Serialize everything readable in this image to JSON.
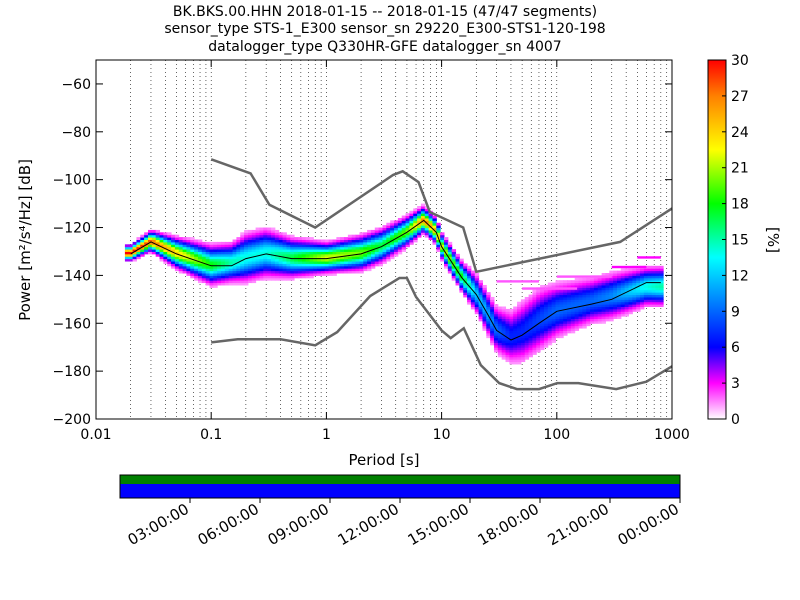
{
  "chart_data": {
    "type": "heatmap",
    "title_lines": [
      "BK.BKS.00.HHN   2018-01-15 -- 2018-01-15  (47/47 segments)",
      "sensor_type STS-1_E300 sensor_sn 29220_E300-STS1-120-198",
      "datalogger_type Q330HR-GFE datalogger_sn 4007"
    ],
    "xlabel": "Period [s]",
    "ylabel": "Power [m²/s⁴/Hz] [dB]",
    "x_scale": "log",
    "xlim": [
      0.01,
      1000
    ],
    "ylim": [
      -200,
      -50
    ],
    "x_ticks": [
      {
        "value": 0.01,
        "label": "0.01"
      },
      {
        "value": 0.1,
        "label": "0.1"
      },
      {
        "value": 1,
        "label": "1"
      },
      {
        "value": 10,
        "label": "10"
      },
      {
        "value": 100,
        "label": "100"
      },
      {
        "value": 1000,
        "label": "1000"
      }
    ],
    "y_ticks": [
      {
        "value": -60,
        "label": "−60"
      },
      {
        "value": -80,
        "label": "−80"
      },
      {
        "value": -100,
        "label": "−100"
      },
      {
        "value": -120,
        "label": "−120"
      },
      {
        "value": -140,
        "label": "−140"
      },
      {
        "value": -160,
        "label": "−160"
      },
      {
        "value": -180,
        "label": "−180"
      },
      {
        "value": -200,
        "label": "−200"
      }
    ],
    "grid": "dotted vertical at log decades",
    "colorbar": {
      "label": "[%]",
      "min": 0,
      "max": 30,
      "ticks": [
        "0",
        "3",
        "6",
        "9",
        "12",
        "15",
        "18",
        "21",
        "24",
        "27",
        "30"
      ],
      "colormap": "pqlx"
    },
    "model_curves": [
      {
        "name": "NHNM",
        "color": "#666666",
        "points": [
          [
            0.1,
            -91.5
          ],
          [
            0.22,
            -97.4
          ],
          [
            0.32,
            -110.5
          ],
          [
            0.8,
            -120
          ],
          [
            3.8,
            -98
          ],
          [
            4.6,
            -96.5
          ],
          [
            6.3,
            -101
          ],
          [
            7.9,
            -113.5
          ],
          [
            15.4,
            -120
          ],
          [
            20,
            -138.5
          ],
          [
            354.8,
            -126
          ],
          [
            1000,
            -112
          ]
        ]
      },
      {
        "name": "NLNM",
        "color": "#666666",
        "points": [
          [
            0.1,
            -168
          ],
          [
            0.17,
            -166.7
          ],
          [
            0.4,
            -166.7
          ],
          [
            0.8,
            -169.2
          ],
          [
            1.24,
            -163.7
          ],
          [
            2.4,
            -148.6
          ],
          [
            4.3,
            -141.1
          ],
          [
            5,
            -141.1
          ],
          [
            6,
            -149
          ],
          [
            10,
            -163
          ],
          [
            12,
            -166.2
          ],
          [
            15.6,
            -162.1
          ],
          [
            21.9,
            -177.5
          ],
          [
            31.6,
            -185
          ],
          [
            45,
            -187.5
          ],
          [
            70,
            -187.5
          ],
          [
            101,
            -185
          ],
          [
            154,
            -185
          ],
          [
            328,
            -187.5
          ],
          [
            600,
            -184.4
          ],
          [
            1000,
            -178
          ]
        ]
      }
    ],
    "ppsd_mode": {
      "name": "mode",
      "color": "#000000",
      "points": [
        [
          0.02,
          -131
        ],
        [
          0.03,
          -126
        ],
        [
          0.05,
          -131
        ],
        [
          0.1,
          -136
        ],
        [
          0.15,
          -136
        ],
        [
          0.2,
          -133
        ],
        [
          0.3,
          -131
        ],
        [
          0.5,
          -133
        ],
        [
          1,
          -133
        ],
        [
          2,
          -131
        ],
        [
          3,
          -128
        ],
        [
          5,
          -122
        ],
        [
          7,
          -117
        ],
        [
          9,
          -122
        ],
        [
          10,
          -128
        ],
        [
          15,
          -141
        ],
        [
          20,
          -148
        ],
        [
          25,
          -156
        ],
        [
          30,
          -163
        ],
        [
          40,
          -167
        ],
        [
          50,
          -165
        ],
        [
          70,
          -160
        ],
        [
          100,
          -155
        ],
        [
          200,
          -152
        ],
        [
          300,
          -150
        ],
        [
          600,
          -143
        ],
        [
          800,
          -143
        ]
      ]
    },
    "ppsd_density": [
      {
        "x": 0.02,
        "center": -131,
        "spread": 1.5,
        "peak": 30
      },
      {
        "x": 0.03,
        "center": -126,
        "spread": 2,
        "peak": 28
      },
      {
        "x": 0.05,
        "center": -131,
        "spread": 3,
        "peak": 24
      },
      {
        "x": 0.1,
        "center": -136,
        "spread": 4,
        "peak": 18
      },
      {
        "x": 0.15,
        "center": -135,
        "spread": 4,
        "peak": 15
      },
      {
        "x": 0.2,
        "center": -133,
        "spread": 5,
        "peak": 14
      },
      {
        "x": 0.3,
        "center": -131,
        "spread": 5,
        "peak": 14
      },
      {
        "x": 0.5,
        "center": -133,
        "spread": 4,
        "peak": 17
      },
      {
        "x": 1,
        "center": -133,
        "spread": 3,
        "peak": 22
      },
      {
        "x": 2,
        "center": -131,
        "spread": 3.5,
        "peak": 20
      },
      {
        "x": 3,
        "center": -128,
        "spread": 3.5,
        "peak": 17
      },
      {
        "x": 5,
        "center": -122,
        "spread": 3,
        "peak": 20
      },
      {
        "x": 7,
        "center": -117,
        "spread": 2.5,
        "peak": 27
      },
      {
        "x": 9,
        "center": -122,
        "spread": 2.5,
        "peak": 25
      },
      {
        "x": 10,
        "center": -128,
        "spread": 2.5,
        "peak": 22
      },
      {
        "x": 15,
        "center": -141,
        "spread": 3,
        "peak": 18
      },
      {
        "x": 20,
        "center": -148,
        "spread": 4,
        "peak": 12
      },
      {
        "x": 25,
        "center": -156,
        "spread": 4.5,
        "peak": 11
      },
      {
        "x": 30,
        "center": -163,
        "spread": 5,
        "peak": 9
      },
      {
        "x": 40,
        "center": -166,
        "spread": 6,
        "peak": 7
      },
      {
        "x": 50,
        "center": -164,
        "spread": 7,
        "peak": 7
      },
      {
        "x": 70,
        "center": -159,
        "spread": 7,
        "peak": 8
      },
      {
        "x": 100,
        "center": -155,
        "spread": 6,
        "peak": 9
      },
      {
        "x": 200,
        "center": -151,
        "spread": 5,
        "peak": 9
      },
      {
        "x": 300,
        "center": -149,
        "spread": 5,
        "peak": 10
      },
      {
        "x": 600,
        "center": -145,
        "spread": 4,
        "peak": 14
      },
      {
        "x": 800,
        "center": -145,
        "spread": 4,
        "peak": 15
      }
    ],
    "ppsd_outliers": [
      {
        "x0": 30,
        "x1": 70,
        "value": -143,
        "intensity": 2
      },
      {
        "x0": 50,
        "x1": 150,
        "value": -146,
        "intensity": 2
      },
      {
        "x0": 100,
        "x1": 300,
        "value": -141,
        "intensity": 2
      },
      {
        "x0": 300,
        "x1": 600,
        "value": -137,
        "intensity": 3
      },
      {
        "x0": 500,
        "x1": 800,
        "value": -133,
        "intensity": 3
      }
    ],
    "coverage": {
      "time_ticks": [
        "03:00:00",
        "06:00:00",
        "09:00:00",
        "12:00:00",
        "15:00:00",
        "18:00:00",
        "21:00:00",
        "00:00:00"
      ],
      "data_color": "#0000ff",
      "coverage_color": "#008000",
      "fraction": 1.0
    }
  }
}
